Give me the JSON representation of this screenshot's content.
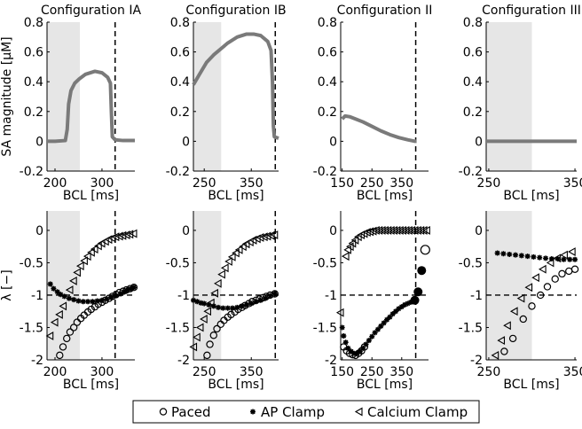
{
  "chart_data": {
    "type": "scatter",
    "ylabels": {
      "top": "SA magnitude [μM]",
      "bottom": "λ [−]"
    },
    "xlabel": "BCL [ms]",
    "legend": {
      "placement": "bottom-center",
      "entries": [
        {
          "name": "Paced",
          "marker": "open-circle"
        },
        {
          "name": "AP Clamp",
          "marker": "asterisk"
        },
        {
          "name": "Calcium Clamp",
          "marker": "left-triangle"
        }
      ]
    },
    "colors": {
      "line": "#7a7a7a",
      "shade": "#e6e6e6",
      "marker": "#000000"
    },
    "top_ylim": [
      -0.2,
      0.8
    ],
    "top_yticks": [
      0.8,
      0.6,
      0.4,
      0.2,
      0,
      -0.2
    ],
    "bottom_ylim": [
      -2,
      0.3
    ],
    "bottom_yticks": [
      0,
      -0.5,
      -1,
      -1.5,
      -2
    ],
    "bottom_hline": -1,
    "panels": [
      {
        "title": "Configuration IA",
        "xlim": [
          183,
          370
        ],
        "xticks": [
          200,
          300
        ],
        "shade": [
          183,
          253
        ],
        "vline": 328,
        "sa": [
          [
            183,
            0
          ],
          [
            200,
            0
          ],
          [
            222,
            0.005
          ],
          [
            226,
            0.08
          ],
          [
            229,
            0.25
          ],
          [
            234,
            0.34
          ],
          [
            242,
            0.39
          ],
          [
            252,
            0.42
          ],
          [
            265,
            0.45
          ],
          [
            285,
            0.47
          ],
          [
            300,
            0.46
          ],
          [
            312,
            0.43
          ],
          [
            318,
            0.39
          ],
          [
            320,
            0.2
          ],
          [
            322,
            0.03
          ],
          [
            328,
            0.01
          ],
          [
            345,
            0.005
          ],
          [
            370,
            0.005
          ]
        ],
        "paced": [
          [
            210,
            -1.93
          ],
          [
            217,
            -1.8
          ],
          [
            225,
            -1.67
          ],
          [
            232,
            -1.57
          ],
          [
            240,
            -1.5
          ],
          [
            247,
            -1.42
          ],
          [
            255,
            -1.36
          ],
          [
            262,
            -1.31
          ],
          [
            270,
            -1.26
          ],
          [
            277,
            -1.22
          ],
          [
            285,
            -1.18
          ],
          [
            292,
            -1.14
          ],
          [
            300,
            -1.11
          ],
          [
            307,
            -1.08
          ],
          [
            315,
            -1.05
          ],
          [
            322,
            -1.02
          ],
          [
            330,
            -0.99
          ],
          [
            337,
            -0.96
          ],
          [
            345,
            -0.94
          ],
          [
            352,
            -0.92
          ],
          [
            360,
            -0.9
          ],
          [
            368,
            -0.88
          ]
        ],
        "ap": [
          [
            190,
            -0.83
          ],
          [
            197,
            -0.9
          ],
          [
            205,
            -0.95
          ],
          [
            212,
            -0.99
          ],
          [
            220,
            -1.02
          ],
          [
            230,
            -1.05
          ],
          [
            240,
            -1.07
          ],
          [
            250,
            -1.09
          ],
          [
            260,
            -1.1
          ],
          [
            270,
            -1.1
          ],
          [
            280,
            -1.1
          ],
          [
            290,
            -1.09
          ],
          [
            300,
            -1.08
          ],
          [
            310,
            -1.06
          ],
          [
            320,
            -1.04
          ],
          [
            330,
            -1.01
          ],
          [
            340,
            -0.98
          ],
          [
            348,
            -0.95
          ],
          [
            355,
            -0.92
          ],
          [
            362,
            -0.9
          ],
          [
            368,
            -0.88
          ]
        ],
        "ca": [
          [
            190,
            -1.63
          ],
          [
            200,
            -1.42
          ],
          [
            210,
            -1.3
          ],
          [
            218,
            -1.17
          ],
          [
            232,
            -0.92
          ],
          [
            240,
            -0.78
          ],
          [
            248,
            -0.65
          ],
          [
            255,
            -0.55
          ],
          [
            263,
            -0.47
          ],
          [
            270,
            -0.4
          ],
          [
            278,
            -0.34
          ],
          [
            285,
            -0.29
          ],
          [
            293,
            -0.24
          ],
          [
            300,
            -0.2
          ],
          [
            308,
            -0.17
          ],
          [
            315,
            -0.14
          ],
          [
            323,
            -0.12
          ],
          [
            330,
            -0.1
          ],
          [
            338,
            -0.09
          ],
          [
            345,
            -0.08
          ],
          [
            353,
            -0.07
          ],
          [
            360,
            -0.06
          ],
          [
            368,
            -0.05
          ]
        ]
      },
      {
        "title": "Configuration IB",
        "xlim": [
          227,
          408
        ],
        "xticks": [
          250,
          350
        ],
        "shade": [
          227,
          286
        ],
        "vline": 401,
        "sa": [
          [
            227,
            0.38
          ],
          [
            240,
            0.45
          ],
          [
            255,
            0.53
          ],
          [
            270,
            0.58
          ],
          [
            285,
            0.62
          ],
          [
            300,
            0.66
          ],
          [
            320,
            0.7
          ],
          [
            340,
            0.72
          ],
          [
            355,
            0.72
          ],
          [
            370,
            0.71
          ],
          [
            385,
            0.67
          ],
          [
            392,
            0.61
          ],
          [
            395,
            0.4
          ],
          [
            397,
            0.1
          ],
          [
            399,
            0.03
          ],
          [
            408,
            0.02
          ]
        ],
        "paced": [
          [
            256,
            -1.93
          ],
          [
            262,
            -1.76
          ],
          [
            270,
            -1.62
          ],
          [
            277,
            -1.52
          ],
          [
            285,
            -1.45
          ],
          [
            292,
            -1.39
          ],
          [
            300,
            -1.34
          ],
          [
            307,
            -1.3
          ],
          [
            315,
            -1.26
          ],
          [
            322,
            -1.22
          ],
          [
            330,
            -1.19
          ],
          [
            337,
            -1.16
          ],
          [
            345,
            -1.13
          ],
          [
            352,
            -1.1
          ],
          [
            360,
            -1.08
          ],
          [
            367,
            -1.06
          ],
          [
            375,
            -1.04
          ],
          [
            382,
            -1.02
          ],
          [
            390,
            -1
          ],
          [
            400,
            -0.98
          ]
        ],
        "ap": [
          [
            227,
            -1.08
          ],
          [
            235,
            -1.1
          ],
          [
            243,
            -1.12
          ],
          [
            250,
            -1.13
          ],
          [
            260,
            -1.15
          ],
          [
            270,
            -1.17
          ],
          [
            280,
            -1.19
          ],
          [
            290,
            -1.2
          ],
          [
            300,
            -1.2
          ],
          [
            310,
            -1.2
          ],
          [
            320,
            -1.19
          ],
          [
            330,
            -1.17
          ],
          [
            340,
            -1.15
          ],
          [
            350,
            -1.13
          ],
          [
            360,
            -1.1
          ],
          [
            370,
            -1.08
          ],
          [
            380,
            -1.05
          ],
          [
            390,
            -1.01
          ],
          [
            400,
            -0.98
          ]
        ],
        "ca": [
          [
            228,
            -1.8
          ],
          [
            235,
            -1.65
          ],
          [
            242,
            -1.5
          ],
          [
            250,
            -1.37
          ],
          [
            258,
            -1.25
          ],
          [
            265,
            -1.12
          ],
          [
            273,
            -0.97
          ],
          [
            280,
            -0.82
          ],
          [
            288,
            -0.68
          ],
          [
            295,
            -0.58
          ],
          [
            303,
            -0.48
          ],
          [
            310,
            -0.41
          ],
          [
            318,
            -0.35
          ],
          [
            325,
            -0.3
          ],
          [
            333,
            -0.25
          ],
          [
            340,
            -0.21
          ],
          [
            348,
            -0.18
          ],
          [
            355,
            -0.15
          ],
          [
            363,
            -0.13
          ],
          [
            370,
            -0.11
          ],
          [
            378,
            -0.1
          ],
          [
            385,
            -0.09
          ],
          [
            393,
            -0.08
          ],
          [
            400,
            -0.07
          ]
        ]
      },
      {
        "title": "Configuration II",
        "xlim": [
          145,
          440
        ],
        "xticks": [
          150,
          250,
          350
        ],
        "shade": null,
        "vline": 397,
        "sa": [
          [
            150,
            0.15
          ],
          [
            160,
            0.17
          ],
          [
            175,
            0.165
          ],
          [
            195,
            0.15
          ],
          [
            220,
            0.13
          ],
          [
            250,
            0.1
          ],
          [
            280,
            0.07
          ],
          [
            310,
            0.045
          ],
          [
            340,
            0.025
          ],
          [
            370,
            0.01
          ],
          [
            395,
            0.0
          ],
          [
            400,
            0.0
          ]
        ],
        "paced": [
          [
            155,
            -1.8
          ],
          [
            165,
            -1.86
          ],
          [
            175,
            -1.9
          ],
          [
            185,
            -1.92
          ],
          [
            195,
            -1.93
          ],
          [
            205,
            -1.9
          ],
          [
            215,
            -1.86
          ],
          [
            225,
            -1.8
          ]
        ],
        "ap": [
          [
            150,
            -1.5
          ],
          [
            155,
            -1.63
          ],
          [
            162,
            -1.73
          ],
          [
            170,
            -1.82
          ],
          [
            180,
            -1.87
          ],
          [
            190,
            -1.9
          ],
          [
            200,
            -1.9
          ],
          [
            210,
            -1.87
          ],
          [
            220,
            -1.82
          ],
          [
            230,
            -1.76
          ],
          [
            240,
            -1.7
          ],
          [
            250,
            -1.64
          ],
          [
            260,
            -1.58
          ],
          [
            270,
            -1.53
          ],
          [
            280,
            -1.48
          ],
          [
            290,
            -1.43
          ],
          [
            300,
            -1.38
          ],
          [
            310,
            -1.34
          ],
          [
            320,
            -1.29
          ],
          [
            330,
            -1.25
          ],
          [
            340,
            -1.21
          ],
          [
            350,
            -1.18
          ],
          [
            360,
            -1.15
          ],
          [
            370,
            -1.13
          ],
          [
            380,
            -1.11
          ],
          [
            390,
            -1.09
          ]
        ],
        "ap_large": [
          [
            394,
            -1.08
          ],
          [
            405,
            -0.95
          ],
          [
            417,
            -0.62
          ]
        ],
        "paced_large": [
          [
            429,
            -0.3
          ]
        ],
        "ca": [
          [
            145,
            -1.27
          ],
          [
            163,
            -0.4
          ],
          [
            170,
            -0.3
          ],
          [
            178,
            -0.25
          ],
          [
            186,
            -0.2
          ],
          [
            195,
            -0.15
          ],
          [
            205,
            -0.1
          ],
          [
            215,
            -0.07
          ],
          [
            225,
            -0.05
          ],
          [
            235,
            -0.03
          ],
          [
            245,
            -0.02
          ],
          [
            255,
            -0.01
          ],
          [
            265,
            0
          ],
          [
            275,
            0
          ],
          [
            285,
            0
          ],
          [
            295,
            0
          ],
          [
            305,
            0
          ],
          [
            315,
            0
          ],
          [
            325,
            0
          ],
          [
            335,
            0
          ],
          [
            345,
            0
          ],
          [
            355,
            0
          ],
          [
            365,
            0
          ],
          [
            375,
            0
          ],
          [
            385,
            0
          ],
          [
            395,
            0
          ],
          [
            405,
            0
          ],
          [
            415,
            0
          ],
          [
            425,
            0
          ],
          [
            435,
            0
          ]
        ]
      },
      {
        "title": "Configuration III",
        "xlim": [
          247,
          352
        ],
        "xticks": [
          250,
          350
        ],
        "shade": [
          247,
          300
        ],
        "vline": null,
        "sa": [
          [
            247,
            0
          ],
          [
            352,
            0
          ]
        ],
        "paced": [
          [
            268,
            -1.87
          ],
          [
            278,
            -1.67
          ],
          [
            290,
            -1.37
          ],
          [
            300,
            -1.17
          ],
          [
            310,
            -1.0
          ],
          [
            318,
            -0.87
          ],
          [
            327,
            -0.75
          ],
          [
            335,
            -0.67
          ],
          [
            343,
            -0.63
          ],
          [
            350,
            -0.6
          ]
        ],
        "ap": [
          [
            260,
            -0.35
          ],
          [
            267,
            -0.36
          ],
          [
            274,
            -0.37
          ],
          [
            281,
            -0.38
          ],
          [
            288,
            -0.39
          ],
          [
            295,
            -0.4
          ],
          [
            302,
            -0.41
          ],
          [
            309,
            -0.42
          ],
          [
            316,
            -0.43
          ],
          [
            323,
            -0.44
          ],
          [
            330,
            -0.44
          ],
          [
            337,
            -0.45
          ],
          [
            344,
            -0.45
          ],
          [
            350,
            -0.45
          ]
        ],
        "ca": [
          [
            258,
            -1.93
          ],
          [
            265,
            -1.7
          ],
          [
            272,
            -1.47
          ],
          [
            280,
            -1.25
          ],
          [
            288,
            -1.05
          ],
          [
            297,
            -0.88
          ],
          [
            305,
            -0.73
          ],
          [
            313,
            -0.6
          ],
          [
            322,
            -0.5
          ],
          [
            330,
            -0.43
          ],
          [
            338,
            -0.38
          ],
          [
            347,
            -0.33
          ]
        ]
      }
    ]
  }
}
